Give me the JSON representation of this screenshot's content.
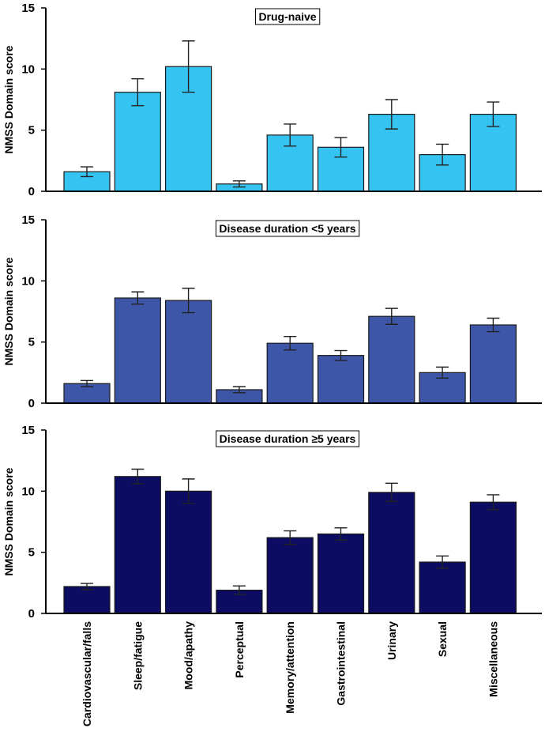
{
  "chart_data": [
    {
      "type": "bar",
      "title": "Drug-naive",
      "ylabel": "NMSS Domain score",
      "ylim": [
        0,
        15
      ],
      "yticks": [
        "0",
        "5",
        "10",
        "15"
      ],
      "color": "#35C4F2",
      "categories": [
        "Cardiovascular/falls",
        "Sleep/fatigue",
        "Mood/apathy",
        "Perceptual",
        "Memory/attention",
        "Gastrointestinal",
        "Urinary",
        "Sexual",
        "Miscellaneous"
      ],
      "values": [
        1.6,
        8.1,
        10.2,
        0.6,
        4.6,
        3.6,
        6.3,
        3.0,
        6.3
      ],
      "errors": [
        0.4,
        1.1,
        2.1,
        0.25,
        0.9,
        0.8,
        1.2,
        0.85,
        1.0
      ]
    },
    {
      "type": "bar",
      "title": "Disease duration <5 years",
      "ylabel": "NMSS Domain score",
      "ylim": [
        0,
        15
      ],
      "yticks": [
        "0",
        "5",
        "10",
        "15"
      ],
      "color": "#3D56A8",
      "categories": [
        "Cardiovascular/falls",
        "Sleep/fatigue",
        "Mood/apathy",
        "Perceptual",
        "Memory/attention",
        "Gastrointestinal",
        "Urinary",
        "Sexual",
        "Miscellaneous"
      ],
      "values": [
        1.6,
        8.6,
        8.4,
        1.1,
        4.9,
        3.9,
        7.1,
        2.5,
        6.4
      ],
      "errors": [
        0.25,
        0.5,
        1.0,
        0.25,
        0.55,
        0.4,
        0.65,
        0.45,
        0.55
      ]
    },
    {
      "type": "bar",
      "title": "Disease duration ≥5 years",
      "ylabel": "NMSS Domain score",
      "ylim": [
        0,
        15
      ],
      "yticks": [
        "0",
        "5",
        "10",
        "15"
      ],
      "color": "#0C0C62",
      "categories": [
        "Cardiovascular/falls",
        "Sleep/fatigue",
        "Mood/apathy",
        "Perceptual",
        "Memory/attention",
        "Gastrointestinal",
        "Urinary",
        "Sexual",
        "Miscellaneous"
      ],
      "values": [
        2.2,
        11.2,
        10.0,
        1.9,
        6.2,
        6.5,
        9.9,
        4.2,
        9.1
      ],
      "errors": [
        0.25,
        0.6,
        1.0,
        0.35,
        0.55,
        0.5,
        0.75,
        0.5,
        0.6
      ]
    }
  ]
}
